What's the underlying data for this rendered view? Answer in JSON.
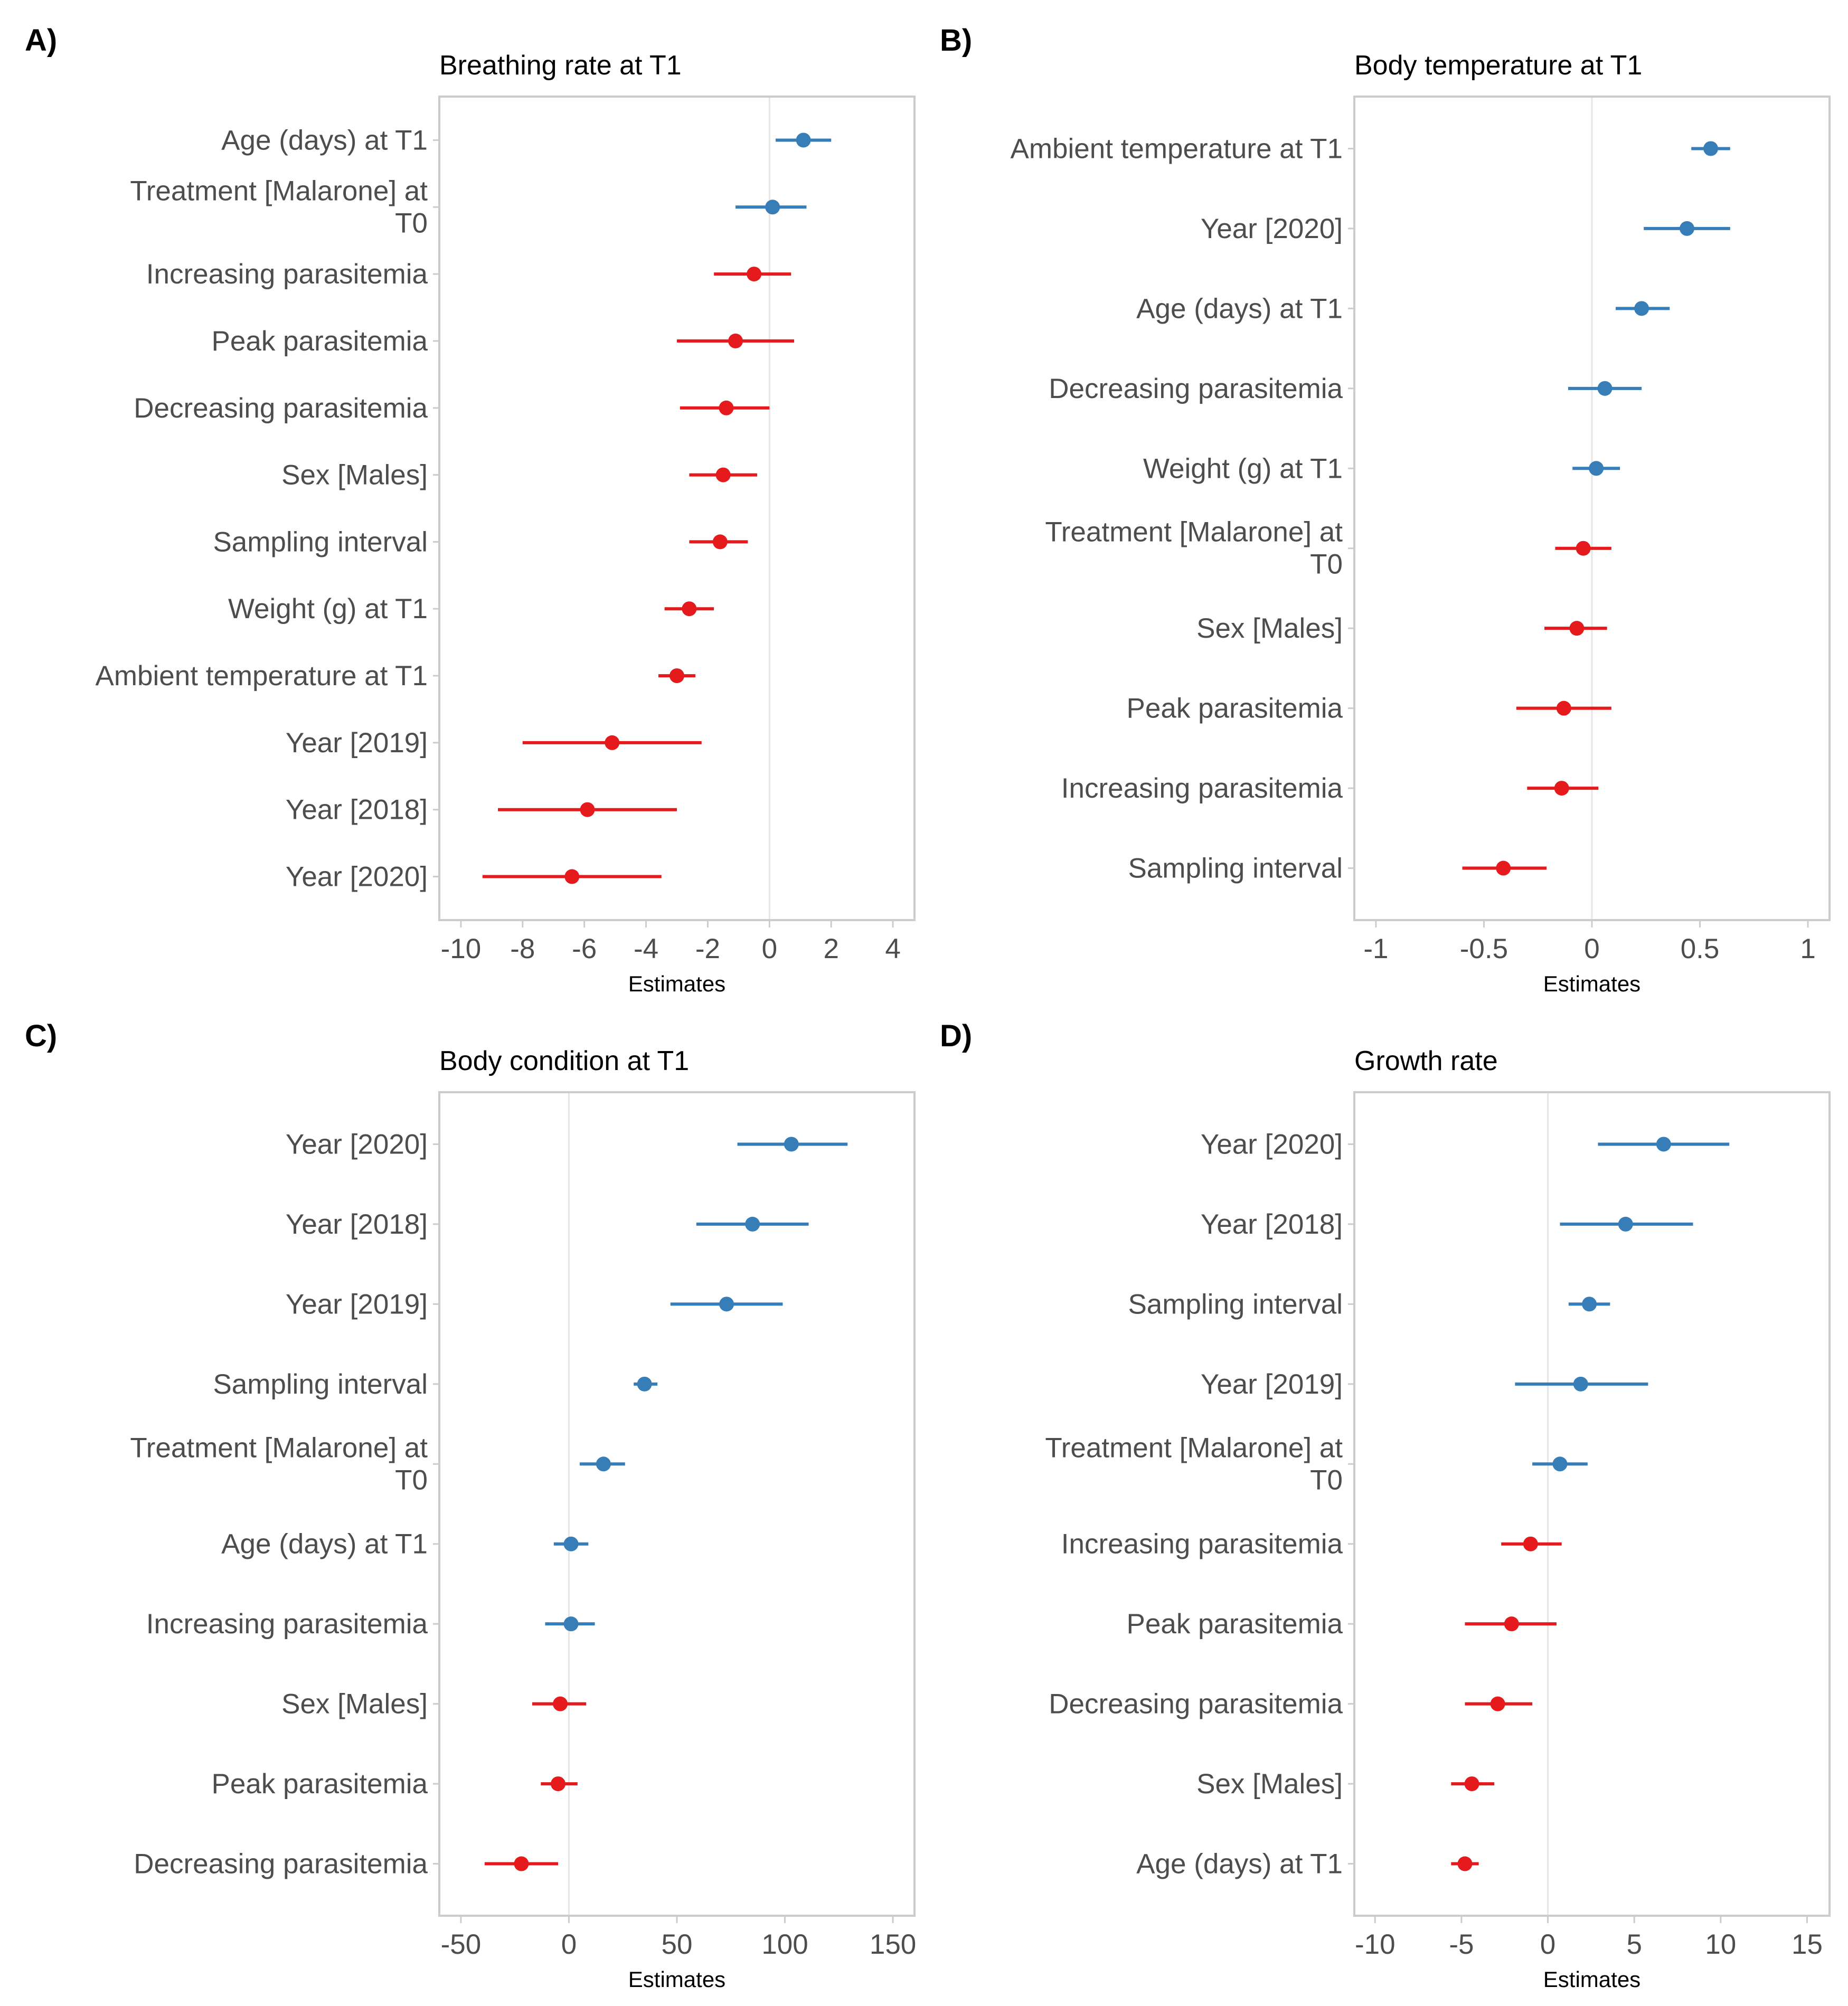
{
  "colors": {
    "positive": "#377eb8",
    "negative": "#e41a1c"
  },
  "chart_data": [
    {
      "type": "scatter",
      "panel": "A)",
      "title": "Breathing rate at T1",
      "xlabel": "Estimates",
      "ylabel": "",
      "xlim": [
        -10.7,
        4.7
      ],
      "xticks": [
        -10,
        -8,
        -6,
        -4,
        -2,
        0,
        2,
        4
      ],
      "xtick_labels": [
        "-10",
        "-8",
        "-6",
        "-4",
        "-2",
        "0",
        "2",
        "4"
      ],
      "grid": false,
      "legend": "none",
      "terms": [
        {
          "label": [
            "Age (days) at T1"
          ],
          "estimate": 1.1,
          "ci": [
            0.2,
            2.0
          ]
        },
        {
          "label": [
            "Treatment [Malarone] at",
            "T0"
          ],
          "estimate": 0.1,
          "ci": [
            -1.1,
            1.2
          ]
        },
        {
          "label": [
            "Increasing parasitemia"
          ],
          "estimate": -0.5,
          "ci": [
            -1.8,
            0.7
          ]
        },
        {
          "label": [
            "Peak parasitemia"
          ],
          "estimate": -1.1,
          "ci": [
            -3.0,
            0.8
          ]
        },
        {
          "label": [
            "Decreasing parasitemia"
          ],
          "estimate": -1.4,
          "ci": [
            -2.9,
            0.0
          ]
        },
        {
          "label": [
            "Sex [Males]"
          ],
          "estimate": -1.5,
          "ci": [
            -2.6,
            -0.4
          ]
        },
        {
          "label": [
            "Sampling interval"
          ],
          "estimate": -1.6,
          "ci": [
            -2.6,
            -0.7
          ]
        },
        {
          "label": [
            "Weight (g) at T1"
          ],
          "estimate": -2.6,
          "ci": [
            -3.4,
            -1.8
          ]
        },
        {
          "label": [
            "Ambient temperature at T1"
          ],
          "estimate": -3.0,
          "ci": [
            -3.6,
            -2.4
          ]
        },
        {
          "label": [
            "Year [2019]"
          ],
          "estimate": -5.1,
          "ci": [
            -8.0,
            -2.2
          ]
        },
        {
          "label": [
            "Year [2018]"
          ],
          "estimate": -5.9,
          "ci": [
            -8.8,
            -3.0
          ]
        },
        {
          "label": [
            "Year [2020]"
          ],
          "estimate": -6.4,
          "ci": [
            -9.3,
            -3.5
          ]
        }
      ]
    },
    {
      "type": "scatter",
      "panel": "B)",
      "title": "Body temperature at T1",
      "xlabel": "Estimates",
      "ylabel": "",
      "xlim": [
        -1.1,
        1.1
      ],
      "xticks": [
        -1,
        -0.5,
        0,
        0.5,
        1
      ],
      "xtick_labels": [
        "-1",
        "-0.5",
        "0",
        "0.5",
        "1"
      ],
      "grid": false,
      "legend": "none",
      "terms": [
        {
          "label": [
            "Ambient temperature at T1"
          ],
          "estimate": 0.55,
          "ci": [
            0.46,
            0.64
          ]
        },
        {
          "label": [
            "Year [2020]"
          ],
          "estimate": 0.44,
          "ci": [
            0.24,
            0.64
          ]
        },
        {
          "label": [
            "Age (days) at T1"
          ],
          "estimate": 0.23,
          "ci": [
            0.11,
            0.36
          ]
        },
        {
          "label": [
            "Decreasing parasitemia"
          ],
          "estimate": 0.06,
          "ci": [
            -0.11,
            0.23
          ]
        },
        {
          "label": [
            "Weight (g) at T1"
          ],
          "estimate": 0.02,
          "ci": [
            -0.09,
            0.13
          ]
        },
        {
          "label": [
            "Treatment [Malarone] at",
            "T0"
          ],
          "estimate": -0.04,
          "ci": [
            -0.17,
            0.09
          ]
        },
        {
          "label": [
            "Sex [Males]"
          ],
          "estimate": -0.07,
          "ci": [
            -0.22,
            0.07
          ]
        },
        {
          "label": [
            "Peak parasitemia"
          ],
          "estimate": -0.13,
          "ci": [
            -0.35,
            0.09
          ]
        },
        {
          "label": [
            "Increasing parasitemia"
          ],
          "estimate": -0.14,
          "ci": [
            -0.3,
            0.03
          ]
        },
        {
          "label": [
            "Sampling interval"
          ],
          "estimate": -0.41,
          "ci": [
            -0.6,
            -0.21
          ]
        }
      ]
    },
    {
      "type": "scatter",
      "panel": "C)",
      "title": "Body condition at T1",
      "xlabel": "Estimates",
      "ylabel": "",
      "xlim": [
        -60,
        160
      ],
      "xticks": [
        -50,
        0,
        50,
        100,
        150
      ],
      "xtick_labels": [
        "-50",
        "0",
        "50",
        "100",
        "150"
      ],
      "grid": false,
      "legend": "none",
      "terms": [
        {
          "label": [
            "Year [2020]"
          ],
          "estimate": 103,
          "ci": [
            78,
            129
          ]
        },
        {
          "label": [
            "Year [2018]"
          ],
          "estimate": 85,
          "ci": [
            59,
            111
          ]
        },
        {
          "label": [
            "Year [2019]"
          ],
          "estimate": 73,
          "ci": [
            47,
            99
          ]
        },
        {
          "label": [
            "Sampling interval"
          ],
          "estimate": 35,
          "ci": [
            30,
            41
          ]
        },
        {
          "label": [
            "Treatment [Malarone] at",
            "T0"
          ],
          "estimate": 16,
          "ci": [
            5,
            26
          ]
        },
        {
          "label": [
            "Age (days) at T1"
          ],
          "estimate": 1,
          "ci": [
            -7,
            9
          ]
        },
        {
          "label": [
            "Increasing parasitemia"
          ],
          "estimate": 1,
          "ci": [
            -11,
            12
          ]
        },
        {
          "label": [
            "Sex [Males]"
          ],
          "estimate": -4,
          "ci": [
            -17,
            8
          ]
        },
        {
          "label": [
            "Peak parasitemia"
          ],
          "estimate": -5,
          "ci": [
            -13,
            4
          ]
        },
        {
          "label": [
            "Decreasing parasitemia"
          ],
          "estimate": -22,
          "ci": [
            -39,
            -5
          ]
        }
      ]
    },
    {
      "type": "scatter",
      "panel": "D)",
      "title": "Growth rate",
      "xlabel": "Estimates",
      "ylabel": "",
      "xlim": [
        -11.2,
        16.3
      ],
      "xticks": [
        -10,
        -5,
        0,
        5,
        10,
        15
      ],
      "xtick_labels": [
        "-10",
        "-5",
        "0",
        "5",
        "10",
        "15"
      ],
      "grid": false,
      "legend": "none",
      "terms": [
        {
          "label": [
            "Year [2020]"
          ],
          "estimate": 6.7,
          "ci": [
            2.9,
            10.5
          ]
        },
        {
          "label": [
            "Year [2018]"
          ],
          "estimate": 4.5,
          "ci": [
            0.7,
            8.4
          ]
        },
        {
          "label": [
            "Sampling interval"
          ],
          "estimate": 2.4,
          "ci": [
            1.2,
            3.6
          ]
        },
        {
          "label": [
            "Year [2019]"
          ],
          "estimate": 1.9,
          "ci": [
            -1.9,
            5.8
          ]
        },
        {
          "label": [
            "Treatment [Malarone] at",
            "T0"
          ],
          "estimate": 0.7,
          "ci": [
            -0.9,
            2.3
          ]
        },
        {
          "label": [
            "Increasing parasitemia"
          ],
          "estimate": -1.0,
          "ci": [
            -2.7,
            0.8
          ]
        },
        {
          "label": [
            "Peak parasitemia"
          ],
          "estimate": -2.1,
          "ci": [
            -4.8,
            0.5
          ]
        },
        {
          "label": [
            "Decreasing parasitemia"
          ],
          "estimate": -2.9,
          "ci": [
            -4.8,
            -0.9
          ]
        },
        {
          "label": [
            "Sex [Males]"
          ],
          "estimate": -4.4,
          "ci": [
            -5.6,
            -3.1
          ]
        },
        {
          "label": [
            "Age (days) at T1"
          ],
          "estimate": -4.8,
          "ci": [
            -5.6,
            -4.0
          ]
        }
      ]
    }
  ]
}
